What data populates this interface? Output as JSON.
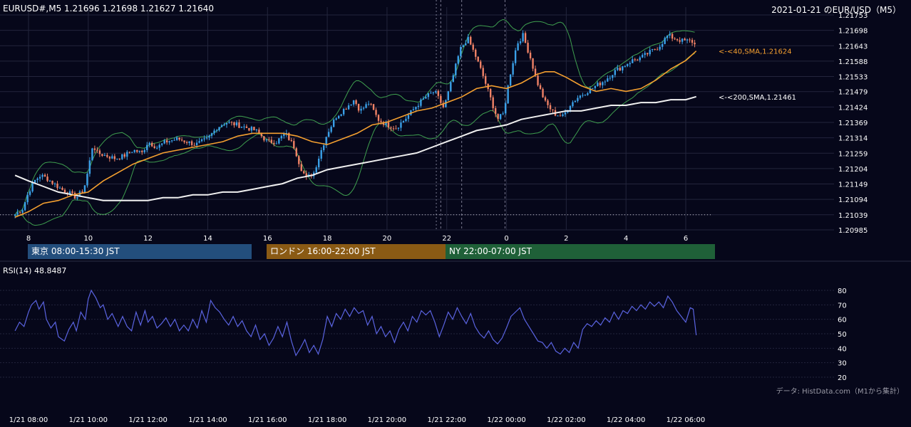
{
  "header": {
    "symbol_info": "EURUSD#,M5 1.21696 1.21698 1.21627 1.21640",
    "title": "2021-01-21 のEUR/USD（M5）"
  },
  "rsi_label": "RSI(14) 48.8487",
  "credit": "データ: HistData.com（M1から集計）",
  "sessions": [
    {
      "label": "東京 08:00-15:30 JST",
      "color": "#234e7c"
    },
    {
      "label": "ロンドン 16:00-22:00 JST",
      "color": "#8a5a14"
    },
    {
      "label": "NY 22:00-07:00 JST",
      "color": "#1f6038"
    }
  ],
  "colors": {
    "background": "#06071a",
    "grid": "#23253c",
    "bull": "#3aa0e8",
    "bear": "#f08266",
    "sma40": "#f5a030",
    "sma200": "#f0f0f0",
    "bollinger": "#3f9f4f",
    "rsi": "#5a63e0"
  },
  "chart_data": [
    {
      "type": "candlestick",
      "name": "price",
      "ylim": [
        1.20985,
        1.21753
      ],
      "y_ticks": [
        "1.21753",
        "1.21698",
        "1.21643",
        "1.21588",
        "1.21533",
        "1.21479",
        "1.21424",
        "1.21369",
        "1.21314",
        "1.21259",
        "1.21204",
        "1.21149",
        "1.21094",
        "1.21039",
        "1.20985"
      ],
      "x_ticks_hour": [
        "8",
        "10",
        "12",
        "14",
        "16",
        "18",
        "20",
        "22",
        "0",
        "2",
        "4",
        "6"
      ],
      "reference_level": 1.21039,
      "annotations": [
        {
          "text": "<-<40,SMA,1.21624",
          "value": 1.21624
        },
        {
          "text": "<-<200,SMA,1.21461",
          "value": 1.21461
        }
      ],
      "close_path": [
        [
          7.55,
          1.2104
        ],
        [
          7.8,
          1.2106
        ],
        [
          8.0,
          1.2112
        ],
        [
          8.2,
          1.2116
        ],
        [
          8.4,
          1.2118
        ],
        [
          8.6,
          1.2117
        ],
        [
          8.85,
          1.2115
        ],
        [
          9.1,
          1.2113
        ],
        [
          9.3,
          1.2112
        ],
        [
          9.6,
          1.211
        ],
        [
          9.85,
          1.2113
        ],
        [
          10.0,
          1.212
        ],
        [
          10.15,
          1.2129
        ],
        [
          10.3,
          1.2126
        ],
        [
          10.6,
          1.2125
        ],
        [
          10.9,
          1.2124
        ],
        [
          11.2,
          1.2125
        ],
        [
          11.5,
          1.2127
        ],
        [
          11.8,
          1.2126
        ],
        [
          12.0,
          1.213
        ],
        [
          12.3,
          1.2128
        ],
        [
          12.6,
          1.213
        ],
        [
          13.0,
          1.2131
        ],
        [
          13.3,
          1.213
        ],
        [
          13.6,
          1.2129
        ],
        [
          14.0,
          1.2131
        ],
        [
          14.3,
          1.2135
        ],
        [
          14.6,
          1.2137
        ],
        [
          15.0,
          1.2136
        ],
        [
          15.3,
          1.2135
        ],
        [
          15.6,
          1.2134
        ],
        [
          16.0,
          1.213
        ],
        [
          16.3,
          1.213
        ],
        [
          16.6,
          1.2133
        ],
        [
          16.9,
          1.2128
        ],
        [
          17.1,
          1.2121
        ],
        [
          17.3,
          1.2117
        ],
        [
          17.55,
          1.2119
        ],
        [
          17.8,
          1.2127
        ],
        [
          18.0,
          1.2133
        ],
        [
          18.3,
          1.2139
        ],
        [
          18.6,
          1.2142
        ],
        [
          18.9,
          1.2145
        ],
        [
          19.1,
          1.2141
        ],
        [
          19.4,
          1.2144
        ],
        [
          19.7,
          1.2138
        ],
        [
          20.0,
          1.2136
        ],
        [
          20.3,
          1.2135
        ],
        [
          20.6,
          1.2138
        ],
        [
          21.0,
          1.2143
        ],
        [
          21.3,
          1.2146
        ],
        [
          21.6,
          1.2148
        ],
        [
          21.9,
          1.2142
        ],
        [
          22.2,
          1.2153
        ],
        [
          22.45,
          1.2163
        ],
        [
          22.7,
          1.2167
        ],
        [
          22.95,
          1.2161
        ],
        [
          23.2,
          1.2154
        ],
        [
          23.45,
          1.2146
        ],
        [
          23.7,
          1.2138
        ],
        [
          23.9,
          1.214
        ],
        [
          24.1,
          1.2153
        ],
        [
          24.35,
          1.2165
        ],
        [
          24.55,
          1.2168
        ],
        [
          24.8,
          1.216
        ],
        [
          25.0,
          1.2152
        ],
        [
          25.3,
          1.2144
        ],
        [
          25.6,
          1.214
        ],
        [
          25.9,
          1.2139
        ],
        [
          26.1,
          1.2143
        ],
        [
          26.4,
          1.2146
        ],
        [
          26.7,
          1.2148
        ],
        [
          27.0,
          1.215
        ],
        [
          27.3,
          1.2152
        ],
        [
          27.6,
          1.2155
        ],
        [
          27.9,
          1.2157
        ],
        [
          28.2,
          1.2159
        ],
        [
          28.5,
          1.216
        ],
        [
          28.8,
          1.2162
        ],
        [
          29.1,
          1.2164
        ],
        [
          29.4,
          1.2168
        ],
        [
          29.6,
          1.2167
        ],
        [
          29.9,
          1.2166
        ],
        [
          30.2,
          1.2166
        ],
        [
          30.35,
          1.2164
        ]
      ],
      "sma40_path": [
        [
          7.55,
          1.2103
        ],
        [
          8.0,
          1.2105
        ],
        [
          8.5,
          1.2108
        ],
        [
          9.0,
          1.2109
        ],
        [
          9.5,
          1.2111
        ],
        [
          10.0,
          1.2112
        ],
        [
          10.5,
          1.2116
        ],
        [
          11.0,
          1.2119
        ],
        [
          11.5,
          1.2122
        ],
        [
          12.0,
          1.2124
        ],
        [
          12.5,
          1.2126
        ],
        [
          13.0,
          1.2127
        ],
        [
          13.5,
          1.2128
        ],
        [
          14.0,
          1.2129
        ],
        [
          14.5,
          1.213
        ],
        [
          15.0,
          1.2132
        ],
        [
          15.5,
          1.2133
        ],
        [
          16.0,
          1.2133
        ],
        [
          16.5,
          1.2133
        ],
        [
          17.0,
          1.2132
        ],
        [
          17.5,
          1.213
        ],
        [
          18.0,
          1.2129
        ],
        [
          18.5,
          1.2131
        ],
        [
          19.0,
          1.2133
        ],
        [
          19.5,
          1.2136
        ],
        [
          20.0,
          1.2137
        ],
        [
          20.5,
          1.2139
        ],
        [
          21.0,
          1.2141
        ],
        [
          21.5,
          1.2142
        ],
        [
          22.0,
          1.2144
        ],
        [
          22.5,
          1.2146
        ],
        [
          23.0,
          1.2149
        ],
        [
          23.5,
          1.215
        ],
        [
          24.0,
          1.2149
        ],
        [
          24.5,
          1.2151
        ],
        [
          25.0,
          1.2154
        ],
        [
          25.3,
          1.2155
        ],
        [
          25.6,
          1.2155
        ],
        [
          26.0,
          1.2153
        ],
        [
          26.5,
          1.215
        ],
        [
          27.0,
          1.2148
        ],
        [
          27.5,
          1.2149
        ],
        [
          28.0,
          1.2148
        ],
        [
          28.5,
          1.2149
        ],
        [
          29.0,
          1.2152
        ],
        [
          29.5,
          1.2156
        ],
        [
          30.0,
          1.2159
        ],
        [
          30.35,
          1.21624
        ]
      ],
      "sma200_path": [
        [
          7.55,
          1.2118
        ],
        [
          8.0,
          1.2116
        ],
        [
          8.5,
          1.2114
        ],
        [
          9.0,
          1.2112
        ],
        [
          9.5,
          1.2111
        ],
        [
          10.0,
          1.211
        ],
        [
          10.5,
          1.2109
        ],
        [
          11.0,
          1.2109
        ],
        [
          11.5,
          1.2109
        ],
        [
          12.0,
          1.2109
        ],
        [
          12.5,
          1.211
        ],
        [
          13.0,
          1.211
        ],
        [
          13.5,
          1.2111
        ],
        [
          14.0,
          1.2111
        ],
        [
          14.5,
          1.2112
        ],
        [
          15.0,
          1.2112
        ],
        [
          15.5,
          1.2113
        ],
        [
          16.0,
          1.2114
        ],
        [
          16.5,
          1.2115
        ],
        [
          17.0,
          1.2117
        ],
        [
          17.5,
          1.2118
        ],
        [
          18.0,
          1.212
        ],
        [
          18.5,
          1.2121
        ],
        [
          19.0,
          1.2122
        ],
        [
          19.5,
          1.2123
        ],
        [
          20.0,
          1.2124
        ],
        [
          20.5,
          1.2125
        ],
        [
          21.0,
          1.2126
        ],
        [
          21.5,
          1.2128
        ],
        [
          22.0,
          1.213
        ],
        [
          22.5,
          1.2132
        ],
        [
          23.0,
          1.2134
        ],
        [
          23.5,
          1.2135
        ],
        [
          24.0,
          1.2136
        ],
        [
          24.5,
          1.2138
        ],
        [
          25.0,
          1.2139
        ],
        [
          25.5,
          1.214
        ],
        [
          26.0,
          1.2141
        ],
        [
          26.5,
          1.2141
        ],
        [
          27.0,
          1.2142
        ],
        [
          27.5,
          1.2143
        ],
        [
          28.0,
          1.2143
        ],
        [
          28.5,
          1.2144
        ],
        [
          29.0,
          1.2144
        ],
        [
          29.5,
          1.2145
        ],
        [
          30.0,
          1.2145
        ],
        [
          30.35,
          1.21461
        ]
      ]
    },
    {
      "type": "line",
      "name": "rsi",
      "ylim": [
        20,
        85
      ],
      "y_ticks": [
        80,
        70,
        60,
        50,
        40,
        30,
        20
      ],
      "x_labels": [
        "1/21 08:00",
        "1/21 10:00",
        "1/21 12:00",
        "1/21 14:00",
        "1/21 16:00",
        "1/21 18:00",
        "1/21 20:00",
        "1/21 22:00",
        "1/22 00:00",
        "1/22 02:00",
        "1/22 04:00",
        "1/22 06:00"
      ],
      "x_label_hours": [
        8,
        10,
        12,
        14,
        16,
        18,
        20,
        22,
        24,
        26,
        28,
        30
      ],
      "points": [
        [
          7.55,
          52
        ],
        [
          7.7,
          58
        ],
        [
          7.85,
          55
        ],
        [
          8.0,
          65
        ],
        [
          8.1,
          70
        ],
        [
          8.25,
          73
        ],
        [
          8.35,
          67
        ],
        [
          8.5,
          72
        ],
        [
          8.6,
          60
        ],
        [
          8.75,
          54
        ],
        [
          8.9,
          58
        ],
        [
          9.0,
          48
        ],
        [
          9.2,
          45
        ],
        [
          9.35,
          53
        ],
        [
          9.5,
          58
        ],
        [
          9.6,
          52
        ],
        [
          9.75,
          65
        ],
        [
          9.9,
          60
        ],
        [
          10.0,
          74
        ],
        [
          10.1,
          80
        ],
        [
          10.25,
          75
        ],
        [
          10.4,
          68
        ],
        [
          10.5,
          70
        ],
        [
          10.65,
          60
        ],
        [
          10.8,
          64
        ],
        [
          11.0,
          55
        ],
        [
          11.15,
          62
        ],
        [
          11.3,
          55
        ],
        [
          11.45,
          52
        ],
        [
          11.6,
          65
        ],
        [
          11.75,
          56
        ],
        [
          11.9,
          66
        ],
        [
          12.0,
          58
        ],
        [
          12.15,
          62
        ],
        [
          12.3,
          54
        ],
        [
          12.45,
          57
        ],
        [
          12.6,
          61
        ],
        [
          12.75,
          55
        ],
        [
          12.9,
          60
        ],
        [
          13.05,
          52
        ],
        [
          13.2,
          56
        ],
        [
          13.35,
          52
        ],
        [
          13.5,
          60
        ],
        [
          13.65,
          54
        ],
        [
          13.8,
          66
        ],
        [
          13.95,
          58
        ],
        [
          14.1,
          73
        ],
        [
          14.25,
          68
        ],
        [
          14.4,
          65
        ],
        [
          14.55,
          60
        ],
        [
          14.7,
          56
        ],
        [
          14.85,
          62
        ],
        [
          15.0,
          55
        ],
        [
          15.15,
          59
        ],
        [
          15.3,
          52
        ],
        [
          15.45,
          48
        ],
        [
          15.6,
          56
        ],
        [
          15.75,
          46
        ],
        [
          15.9,
          50
        ],
        [
          16.05,
          42
        ],
        [
          16.2,
          47
        ],
        [
          16.35,
          55
        ],
        [
          16.5,
          48
        ],
        [
          16.65,
          58
        ],
        [
          16.8,
          45
        ],
        [
          16.95,
          35
        ],
        [
          17.1,
          40
        ],
        [
          17.25,
          46
        ],
        [
          17.4,
          37
        ],
        [
          17.55,
          42
        ],
        [
          17.7,
          36
        ],
        [
          17.85,
          46
        ],
        [
          18.0,
          62
        ],
        [
          18.15,
          55
        ],
        [
          18.3,
          64
        ],
        [
          18.45,
          60
        ],
        [
          18.6,
          67
        ],
        [
          18.75,
          62
        ],
        [
          18.9,
          68
        ],
        [
          19.05,
          64
        ],
        [
          19.2,
          66
        ],
        [
          19.35,
          56
        ],
        [
          19.5,
          62
        ],
        [
          19.65,
          50
        ],
        [
          19.8,
          55
        ],
        [
          19.95,
          48
        ],
        [
          20.1,
          52
        ],
        [
          20.25,
          44
        ],
        [
          20.4,
          53
        ],
        [
          20.55,
          58
        ],
        [
          20.7,
          52
        ],
        [
          20.85,
          62
        ],
        [
          21.0,
          58
        ],
        [
          21.15,
          66
        ],
        [
          21.3,
          63
        ],
        [
          21.45,
          66
        ],
        [
          21.6,
          58
        ],
        [
          21.75,
          48
        ],
        [
          21.9,
          56
        ],
        [
          22.05,
          65
        ],
        [
          22.2,
          60
        ],
        [
          22.35,
          68
        ],
        [
          22.5,
          62
        ],
        [
          22.65,
          57
        ],
        [
          22.8,
          64
        ],
        [
          22.95,
          55
        ],
        [
          23.1,
          50
        ],
        [
          23.25,
          47
        ],
        [
          23.4,
          52
        ],
        [
          23.55,
          46
        ],
        [
          23.7,
          43
        ],
        [
          23.85,
          47
        ],
        [
          24.0,
          54
        ],
        [
          24.15,
          62
        ],
        [
          24.3,
          65
        ],
        [
          24.45,
          68
        ],
        [
          24.6,
          60
        ],
        [
          24.75,
          55
        ],
        [
          24.9,
          50
        ],
        [
          25.05,
          45
        ],
        [
          25.2,
          44
        ],
        [
          25.35,
          40
        ],
        [
          25.5,
          44
        ],
        [
          25.65,
          38
        ],
        [
          25.8,
          36
        ],
        [
          25.95,
          40
        ],
        [
          26.1,
          37
        ],
        [
          26.25,
          44
        ],
        [
          26.4,
          40
        ],
        [
          26.55,
          53
        ],
        [
          26.7,
          57
        ],
        [
          26.85,
          55
        ],
        [
          27.0,
          59
        ],
        [
          27.15,
          56
        ],
        [
          27.3,
          61
        ],
        [
          27.45,
          58
        ],
        [
          27.6,
          65
        ],
        [
          27.75,
          60
        ],
        [
          27.9,
          66
        ],
        [
          28.05,
          64
        ],
        [
          28.2,
          69
        ],
        [
          28.35,
          66
        ],
        [
          28.5,
          70
        ],
        [
          28.65,
          67
        ],
        [
          28.8,
          72
        ],
        [
          28.95,
          69
        ],
        [
          29.1,
          72
        ],
        [
          29.25,
          68
        ],
        [
          29.4,
          76
        ],
        [
          29.55,
          72
        ],
        [
          29.7,
          66
        ],
        [
          29.85,
          62
        ],
        [
          30.0,
          58
        ],
        [
          30.15,
          68
        ],
        [
          30.25,
          67
        ],
        [
          30.35,
          49
        ]
      ]
    }
  ]
}
